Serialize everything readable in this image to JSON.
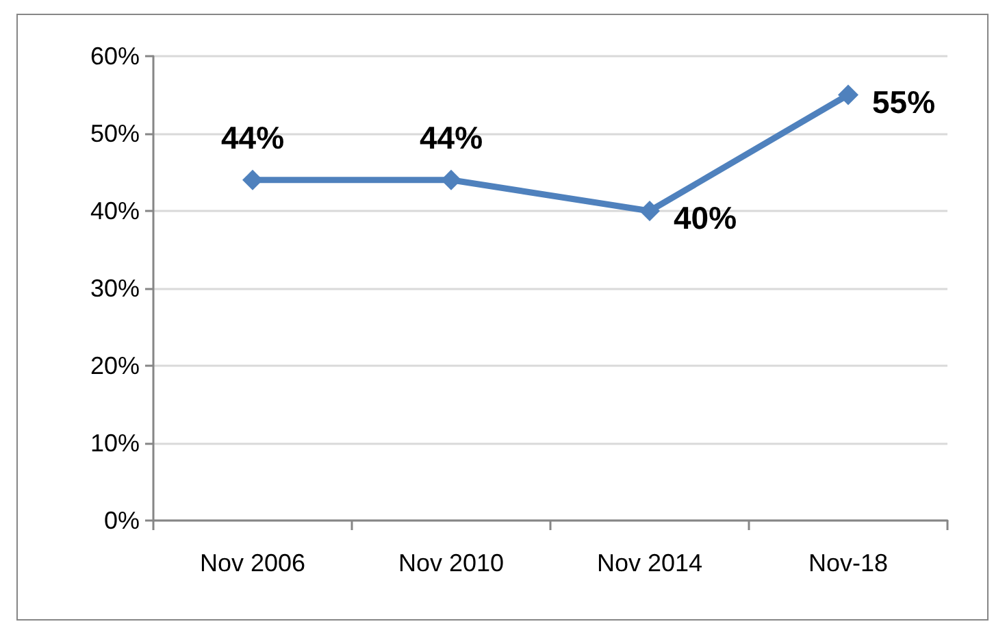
{
  "chart_data": {
    "type": "line",
    "categories": [
      "Nov 2006",
      "Nov 2010",
      "Nov 2014",
      "Nov-18"
    ],
    "series": [
      {
        "color": "#4f81bd",
        "values": [
          44,
          44,
          40,
          55
        ],
        "value_labels": [
          "44%",
          "44%",
          "40%",
          "55%"
        ]
      }
    ],
    "ylim": [
      0,
      60
    ],
    "yticks": [
      {
        "value": 0,
        "label": "0%"
      },
      {
        "value": 10,
        "label": "10%"
      },
      {
        "value": 20,
        "label": "20%"
      },
      {
        "value": 30,
        "label": "30%"
      },
      {
        "value": 40,
        "label": "40%"
      },
      {
        "value": 50,
        "label": "50%"
      },
      {
        "value": 60,
        "label": "60%"
      }
    ],
    "grid": "y",
    "marker": "diamond",
    "line_style": "solid"
  }
}
